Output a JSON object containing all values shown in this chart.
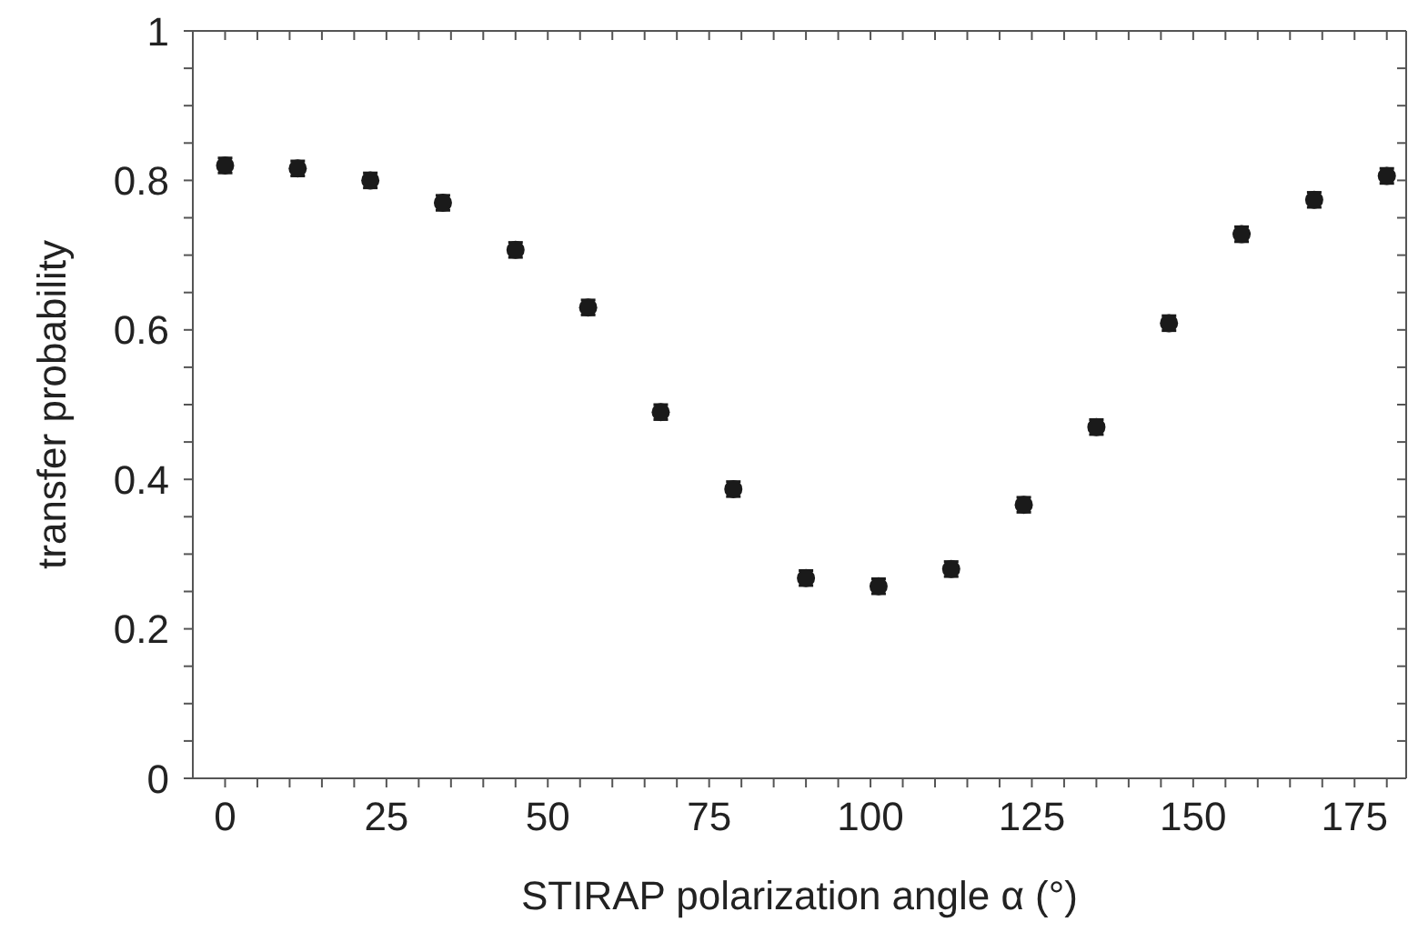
{
  "chart_data": {
    "type": "scatter",
    "xlabel": "STIRAP polarization angle α (°)",
    "ylabel": "transfer probability",
    "x": [
      0,
      11.25,
      22.5,
      33.75,
      45,
      56.25,
      67.5,
      78.75,
      90,
      101.25,
      112.5,
      123.75,
      135,
      146.25,
      157.5,
      168.75,
      180
    ],
    "series": [
      {
        "color": "#1a1a1a",
        "values": [
          0.82,
          0.816,
          0.8,
          0.77,
          0.707,
          0.63,
          0.49,
          0.387,
          0.268,
          0.257,
          0.28,
          0.366,
          0.47,
          0.609,
          0.728,
          0.774,
          0.806
        ],
        "errors": [
          0.01,
          0.01,
          0.01,
          0.01,
          0.01,
          0.01,
          0.01,
          0.01,
          0.01,
          0.01,
          0.01,
          0.01,
          0.01,
          0.01,
          0.01,
          0.01,
          0.01
        ]
      }
    ],
    "marker": "circle",
    "xlim": [
      -5,
      183
    ],
    "xticks": [
      0,
      {
        "value": 5,
        "label": null
      },
      {
        "value": 10,
        "label": null
      },
      {
        "value": 15,
        "label": null
      },
      {
        "value": 20,
        "label": null
      },
      25,
      {
        "value": 30,
        "label": null
      },
      {
        "value": 35,
        "label": null
      },
      {
        "value": 40,
        "label": null
      },
      {
        "value": 45,
        "label": null
      },
      50,
      {
        "value": 55,
        "label": null
      },
      {
        "value": 60,
        "label": null
      },
      {
        "value": 65,
        "label": null
      },
      {
        "value": 70,
        "label": null
      },
      75,
      {
        "value": 80,
        "label": null
      },
      {
        "value": 85,
        "label": null
      },
      {
        "value": 90,
        "label": null
      },
      {
        "value": 95,
        "label": null
      },
      100,
      {
        "value": 105,
        "label": null
      },
      {
        "value": 110,
        "label": null
      },
      {
        "value": 115,
        "label": null
      },
      {
        "value": 120,
        "label": null
      },
      125,
      {
        "value": 130,
        "label": null
      },
      {
        "value": 135,
        "label": null
      },
      {
        "value": 140,
        "label": null
      },
      {
        "value": 145,
        "label": null
      },
      150,
      {
        "value": 155,
        "label": null
      },
      {
        "value": 160,
        "label": null
      },
      {
        "value": 165,
        "label": null
      },
      {
        "value": 170,
        "label": null
      },
      175,
      {
        "value": 180,
        "label": null
      }
    ],
    "ylim": [
      0,
      1
    ],
    "yticks": [
      0,
      {
        "value": 0.05,
        "label": null
      },
      {
        "value": 0.1,
        "label": null
      },
      {
        "value": 0.15,
        "label": null
      },
      0.2,
      {
        "value": 0.25,
        "label": null
      },
      {
        "value": 0.3,
        "label": null
      },
      {
        "value": 0.35,
        "label": null
      },
      0.4,
      {
        "value": 0.45,
        "label": null
      },
      {
        "value": 0.5,
        "label": null
      },
      {
        "value": 0.55,
        "label": null
      },
      0.6,
      {
        "value": 0.65,
        "label": null
      },
      {
        "value": 0.7,
        "label": null
      },
      {
        "value": 0.75,
        "label": null
      },
      0.8,
      {
        "value": 0.85,
        "label": null
      },
      {
        "value": 0.9,
        "label": null
      },
      {
        "value": 0.95,
        "label": null
      },
      1
    ]
  }
}
